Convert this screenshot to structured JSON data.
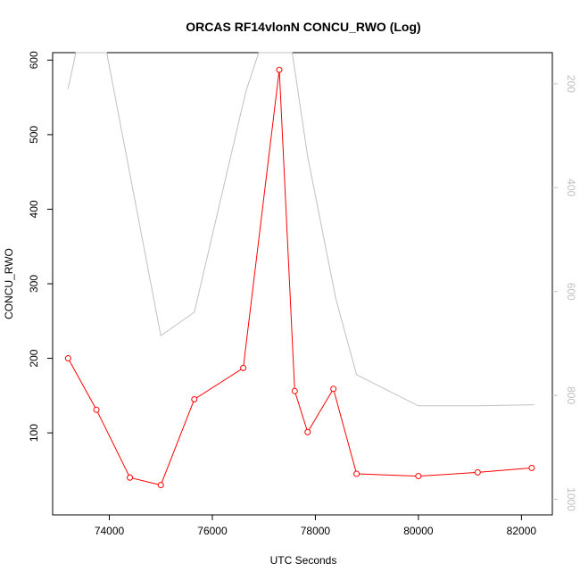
{
  "chart_data": {
    "type": "line",
    "title": "ORCAS RF14vlonN CONCU_RWO (Log)",
    "xlabel": "UTC Seconds",
    "ylabel": "CONCU_RWO",
    "xlim": [
      72900,
      82600
    ],
    "ylim": [
      -10,
      610
    ],
    "x_ticks": [
      74000,
      76000,
      78000,
      80000,
      82000
    ],
    "y_ticks": [
      100,
      200,
      300,
      400,
      500,
      600
    ],
    "grid": false,
    "series": [
      {
        "color": "#ff0000",
        "markers": "open-circle",
        "x": [
          73200,
          73750,
          74400,
          75000,
          75650,
          76600,
          77300,
          77600,
          77850,
          78350,
          78800,
          80000,
          81150,
          82200
        ],
        "y": [
          200,
          131,
          40,
          30,
          145,
          187,
          587,
          156,
          101,
          159,
          45,
          42,
          47,
          53
        ]
      }
    ],
    "secondary_axis": {
      "side": "right",
      "color": "#c0c0c0",
      "inverted": true,
      "ylim": [
        1030,
        140
      ],
      "ticks": [
        200,
        400,
        600,
        800,
        1000
      ],
      "series": {
        "color": "#c0c0c0",
        "x": [
          73200,
          73350,
          73950,
          75000,
          75650,
          76650,
          76900,
          77300,
          77550,
          77850,
          78400,
          78800,
          80000,
          81150,
          82250
        ],
        "y": [
          210,
          90,
          80,
          685,
          640,
          215,
          140,
          100,
          120,
          340,
          615,
          760,
          820,
          820,
          818
        ]
      }
    }
  }
}
